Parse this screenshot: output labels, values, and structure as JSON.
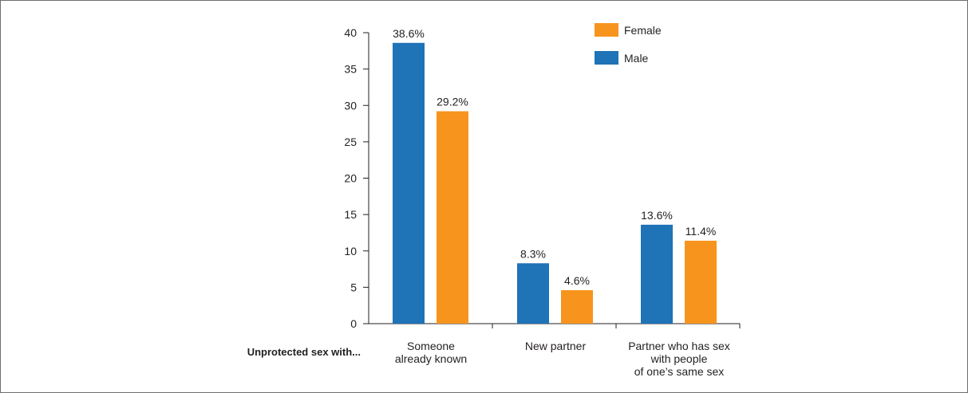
{
  "chart_data": {
    "type": "bar",
    "group_title": "Unprotected sex with...",
    "categories": [
      [
        "Someone",
        "already known"
      ],
      [
        "New partner"
      ],
      [
        "Partner who has sex",
        "with people",
        "of one’s same sex"
      ]
    ],
    "series": [
      {
        "name": "Male",
        "color": "#1f73b7",
        "values": [
          38.6,
          8.3,
          13.6
        ],
        "labels": [
          "38.6%",
          "8.3%",
          "13.6%"
        ]
      },
      {
        "name": "Female",
        "color": "#f7941d",
        "values": [
          29.2,
          4.6,
          11.4
        ],
        "labels": [
          "29.2%",
          "4.6%",
          "11.4%"
        ]
      }
    ],
    "y_ticks": [
      0,
      5,
      10,
      15,
      20,
      25,
      30,
      35,
      40
    ],
    "ylim": [
      0,
      40
    ],
    "legend_order": [
      "Female",
      "Male"
    ],
    "legend_position": "top-right",
    "grid": false
  }
}
